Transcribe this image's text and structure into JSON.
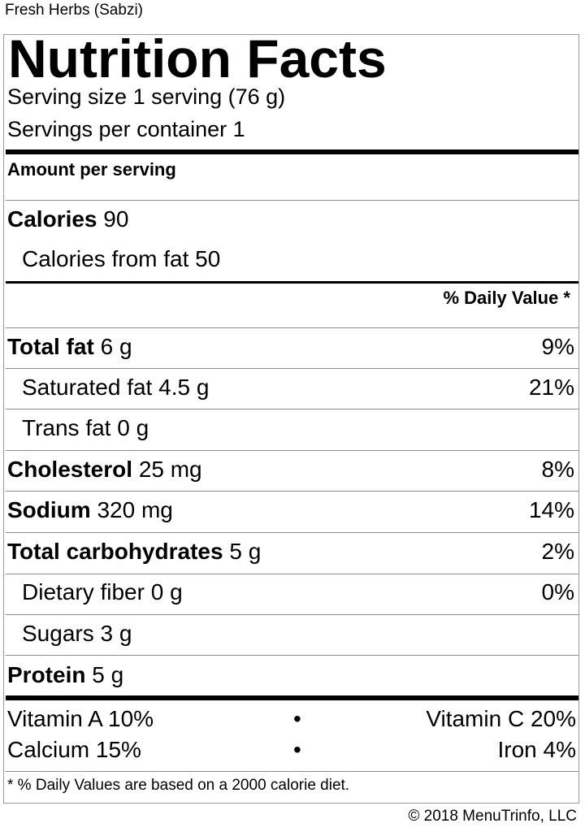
{
  "product": {
    "name": "Fresh Herbs (Sabzi)"
  },
  "label": {
    "heading": "Nutrition Facts",
    "serving_size": "Serving size 1 serving (76 g)",
    "servings_per_container": "Servings per container 1",
    "amount_per_serving": "Amount per serving",
    "calories_label": "Calories",
    "calories_value": "90",
    "calories_from_fat": "Calories from fat 50",
    "daily_value_header": "% Daily Value *",
    "nutrients": {
      "total_fat": {
        "label": "Total fat",
        "amount": "6 g",
        "dv": "9%"
      },
      "saturated_fat": {
        "label": "Saturated fat",
        "amount": "4.5 g",
        "dv": "21%"
      },
      "trans_fat": {
        "label": "Trans fat",
        "amount": "0 g"
      },
      "cholesterol": {
        "label": "Cholesterol",
        "amount": "25 mg",
        "dv": "8%"
      },
      "sodium": {
        "label": "Sodium",
        "amount": "320 mg",
        "dv": "14%"
      },
      "total_carbohydrates": {
        "label": "Total carbohydrates",
        "amount": "5 g",
        "dv": "2%"
      },
      "dietary_fiber": {
        "label": "Dietary fiber",
        "amount": "0 g",
        "dv": "0%"
      },
      "sugars": {
        "label": "Sugars",
        "amount": "3 g"
      },
      "protein": {
        "label": "Protein",
        "amount": "5 g"
      }
    },
    "vitamins": {
      "vitamin_a": "Vitamin A 10%",
      "vitamin_c": "Vitamin C 20%",
      "calcium": "Calcium 15%",
      "iron": "Iron 4%",
      "separator": "•"
    },
    "footnote": "* % Daily Values are based on a 2000 calorie diet."
  },
  "copyright": "© 2018 MenuTrinfo, LLC"
}
